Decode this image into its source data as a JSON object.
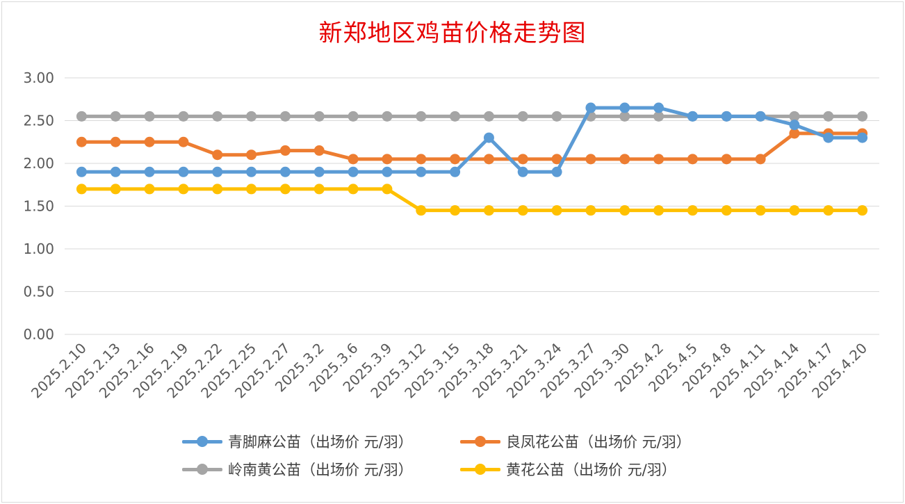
{
  "chart_data": {
    "type": "line",
    "title": "新郑地区鸡苗价格走势图",
    "xlabel": "",
    "ylabel": "",
    "ylim": [
      0,
      3
    ],
    "yticks": [
      "0.00",
      "0.50",
      "1.00",
      "1.50",
      "2.00",
      "2.50",
      "3.00"
    ],
    "grid": true,
    "legend_position": "bottom",
    "categories": [
      "2025.2.10",
      "2025.2.13",
      "2025.2.16",
      "2025.2.19",
      "2025.2.22",
      "2025.2.25",
      "2025.2.27",
      "2025.3.2",
      "2025.3.6",
      "2025.3.9",
      "2025.3.12",
      "2025.3.15",
      "2025.3.18",
      "2025.3.21",
      "2025.3.24",
      "2025.3.27",
      "2025.3.30",
      "2025.4.2",
      "2025.4.5",
      "2025.4.8",
      "2025.4.11",
      "2025.4.14",
      "2025.4.17",
      "2025.4.20"
    ],
    "series": [
      {
        "name": "青脚麻公苗（出场价 元/羽）",
        "color": "#5b9bd5",
        "values": [
          1.9,
          1.9,
          1.9,
          1.9,
          1.9,
          1.9,
          1.9,
          1.9,
          1.9,
          1.9,
          1.9,
          1.9,
          2.3,
          1.9,
          1.9,
          2.65,
          2.65,
          2.65,
          2.55,
          2.55,
          2.55,
          2.45,
          2.3,
          2.3
        ]
      },
      {
        "name": "良凤花公苗（出场价 元/羽）",
        "color": "#ed7d31",
        "values": [
          2.25,
          2.25,
          2.25,
          2.25,
          2.1,
          2.1,
          2.15,
          2.15,
          2.05,
          2.05,
          2.05,
          2.05,
          2.05,
          2.05,
          2.05,
          2.05,
          2.05,
          2.05,
          2.05,
          2.05,
          2.05,
          2.35,
          2.35,
          2.35
        ]
      },
      {
        "name": "岭南黄公苗（出场价 元/羽）",
        "color": "#a5a5a5",
        "values": [
          2.55,
          2.55,
          2.55,
          2.55,
          2.55,
          2.55,
          2.55,
          2.55,
          2.55,
          2.55,
          2.55,
          2.55,
          2.55,
          2.55,
          2.55,
          2.55,
          2.55,
          2.55,
          2.55,
          2.55,
          2.55,
          2.55,
          2.55,
          2.55
        ]
      },
      {
        "name": "黄花公苗（出场价 元/羽）",
        "color": "#ffc000",
        "values": [
          1.7,
          1.7,
          1.7,
          1.7,
          1.7,
          1.7,
          1.7,
          1.7,
          1.7,
          1.7,
          1.45,
          1.45,
          1.45,
          1.45,
          1.45,
          1.45,
          1.45,
          1.45,
          1.45,
          1.45,
          1.45,
          1.45,
          1.45,
          1.45
        ]
      }
    ]
  }
}
